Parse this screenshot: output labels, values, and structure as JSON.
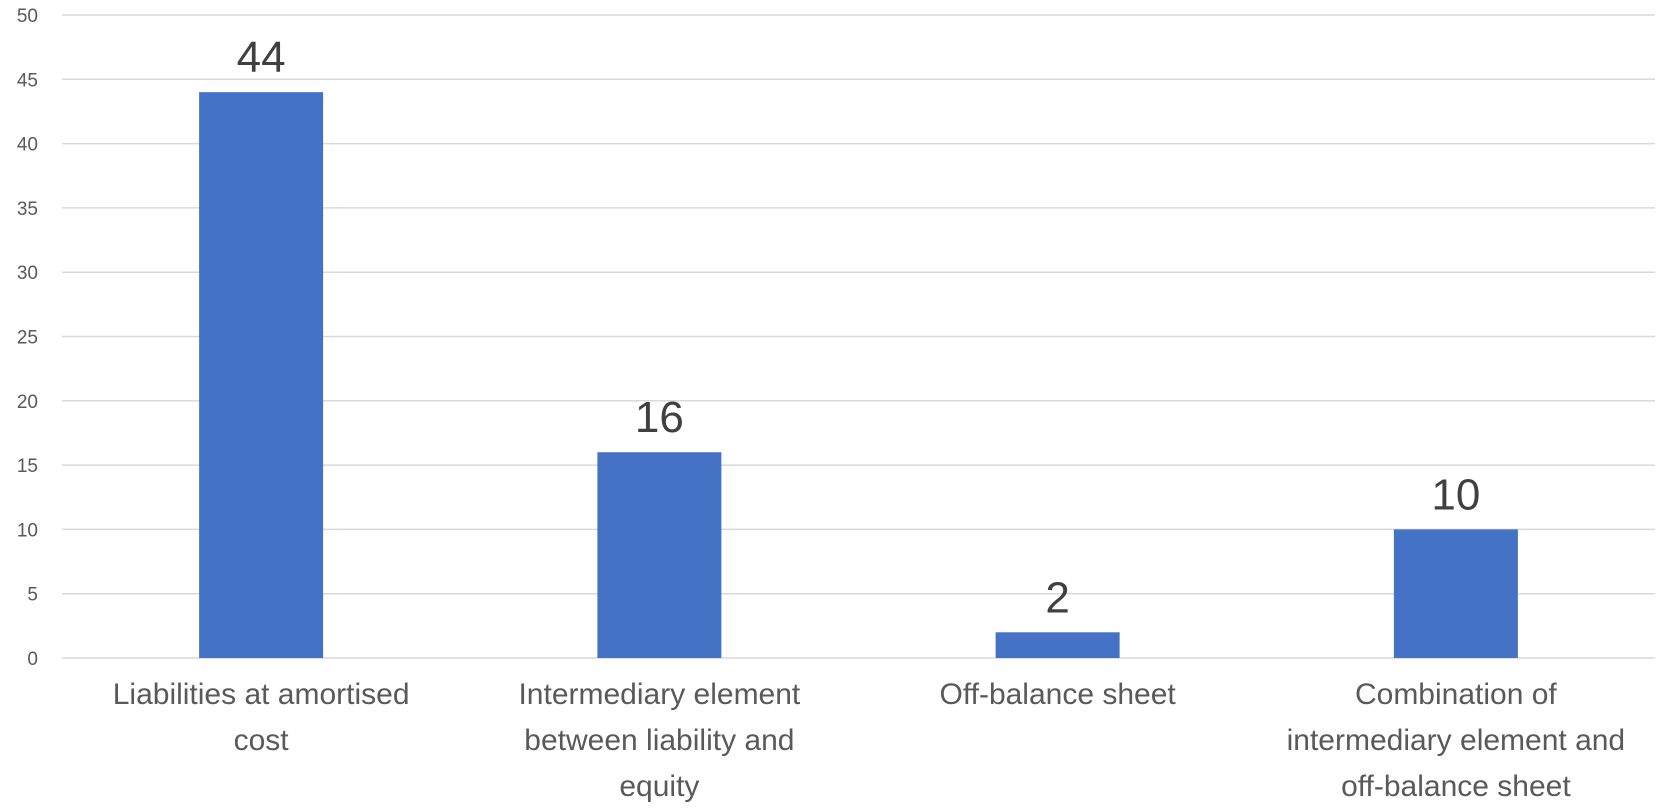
{
  "chart_data": {
    "type": "bar",
    "categories": [
      [
        "Liabilities at amortised",
        "cost"
      ],
      [
        "Intermediary element",
        "between liability and",
        "equity"
      ],
      [
        "Off-balance sheet"
      ],
      [
        "Combination of",
        "intermediary element and",
        "off-balance sheet"
      ]
    ],
    "values": [
      44,
      16,
      2,
      10
    ],
    "data_labels": [
      "44",
      "16",
      "2",
      "10"
    ],
    "title": "",
    "xlabel": "",
    "ylabel": "",
    "ylim": [
      0,
      50
    ],
    "yticks": [
      0,
      5,
      10,
      15,
      20,
      25,
      30,
      35,
      40,
      45,
      50
    ],
    "grid": true,
    "legend": "none",
    "bar_color": "#4472C4"
  }
}
